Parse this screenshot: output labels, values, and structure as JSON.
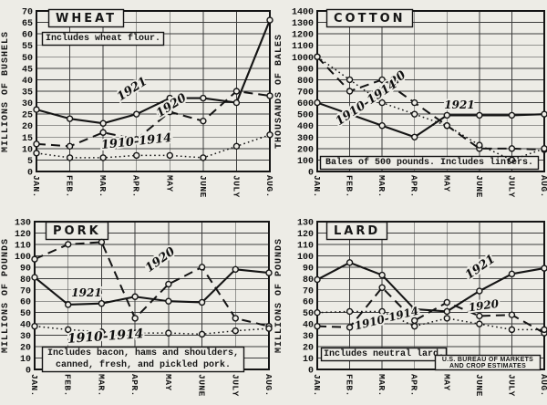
{
  "credit": {
    "line1": "U.S. BUREAU OF MARKETS",
    "line2": "AND CROP ESTIMATES"
  },
  "chart_data": [
    {
      "id": "wheat",
      "type": "line",
      "title": "WHEAT",
      "note": "Includes wheat flour.",
      "ylabel": "MILLIONS OF BUSHELS",
      "ylim": [
        0,
        70
      ],
      "ytick": 5,
      "grid": true,
      "categories": [
        "JAN.",
        "FEB.",
        "MAR.",
        "APR.",
        "MAY",
        "JUNE",
        "JULY",
        "AUG."
      ],
      "series": [
        {
          "name": "1921",
          "line_style": "solid",
          "values": [
            27,
            23,
            21,
            25,
            32,
            32,
            30,
            66
          ]
        },
        {
          "name": "1920",
          "line_style": "long-dash",
          "values": [
            12,
            11,
            17,
            14,
            26,
            22,
            35,
            33
          ]
        },
        {
          "name": "1910-1914",
          "line_style": "dotted",
          "values": [
            8,
            6,
            6,
            7,
            7,
            6,
            11,
            16
          ]
        }
      ],
      "series_labels": [
        {
          "text": "1921",
          "x": 147,
          "y": 101,
          "angle": -33,
          "size": 13
        },
        {
          "text": "1920",
          "x": 190,
          "y": 119,
          "angle": -33,
          "size": 13
        },
        {
          "text": "1910-1914",
          "x": 150,
          "y": 159,
          "angle": -6,
          "size": 13
        }
      ]
    },
    {
      "id": "cotton",
      "type": "line",
      "title": "COTTON",
      "note": "Bales of 500 pounds. Includes linters.",
      "ylabel": "THOUSANDS OF BALES",
      "ylim": [
        0,
        1400
      ],
      "ytick": 100,
      "grid": true,
      "categories": [
        "JAN.",
        "FEB.",
        "MAR.",
        "APR.",
        "MAY",
        "JUNE",
        "JULY",
        "AUG."
      ],
      "series": [
        {
          "name": "1921",
          "line_style": "solid",
          "values": [
            600,
            500,
            400,
            300,
            490,
            490,
            490,
            500
          ]
        },
        {
          "name": "1920",
          "line_style": "long-dash",
          "values": [
            1000,
            700,
            800,
            600,
            400,
            200,
            200,
            190
          ]
        },
        {
          "name": "1910-1914",
          "line_style": "dotted",
          "values": [
            1000,
            800,
            600,
            500,
            400,
            230,
            100,
            200
          ]
        }
      ],
      "series_labels": [
        {
          "text": "1920",
          "x": 132,
          "y": 95,
          "angle": -40,
          "size": 13
        },
        {
          "text": "1910-1914",
          "x": 104,
          "y": 116,
          "angle": -34,
          "size": 13
        },
        {
          "text": "1921",
          "x": 204,
          "y": 119,
          "angle": 0,
          "size": 12
        }
      ]
    },
    {
      "id": "pork",
      "type": "line",
      "title": "PORK",
      "note": "Includes bacon, hams and shoulders, canned, fresh, and pickled pork.",
      "ylabel": "MILLIONS OF POUNDS",
      "ylim": [
        0,
        130
      ],
      "ytick": 10,
      "grid": true,
      "categories": [
        "JAN.",
        "FEB.",
        "MAR.",
        "APR.",
        "MAY",
        "JUNE",
        "JULY",
        "AUG."
      ],
      "series": [
        {
          "name": "1921",
          "line_style": "solid",
          "values": [
            81,
            57,
            58,
            64,
            60,
            59,
            88,
            85
          ]
        },
        {
          "name": "1920",
          "line_style": "long-dash",
          "values": [
            97,
            110,
            112,
            45,
            75,
            90,
            45,
            38
          ]
        },
        {
          "name": "1910-1914",
          "line_style": "dotted",
          "values": [
            38,
            35,
            33,
            32,
            32,
            31,
            34,
            36
          ]
        }
      ],
      "series_labels": [
        {
          "text": "1921",
          "x": 95,
          "y": 103,
          "angle": 0,
          "size": 12
        },
        {
          "text": "1920",
          "x": 178,
          "y": 66,
          "angle": -36,
          "size": 13
        },
        {
          "text": "1910-1914",
          "x": 116,
          "y": 151,
          "angle": -4,
          "size": 14
        }
      ]
    },
    {
      "id": "lard",
      "type": "line",
      "title": "LARD",
      "note": "Includes neutral lard.",
      "ylabel": "MILLIONS OF POUNDS",
      "ylim": [
        0,
        130
      ],
      "ytick": 10,
      "grid": true,
      "categories": [
        "JAN.",
        "FEB.",
        "MAR.",
        "APR.",
        "MAY",
        "JUNE",
        "JULY",
        "AUG."
      ],
      "series": [
        {
          "name": "1921",
          "line_style": "solid",
          "values": [
            79,
            94,
            83,
            53,
            51,
            69,
            84,
            89
          ]
        },
        {
          "name": "1920",
          "line_style": "long-dash",
          "values": [
            38,
            37,
            72,
            43,
            59,
            47,
            48,
            32
          ]
        },
        {
          "name": "1910-1914",
          "line_style": "dotted",
          "values": [
            50,
            51,
            51,
            38,
            45,
            40,
            35,
            35
          ]
        }
      ],
      "series_labels": [
        {
          "text": "1921",
          "x": 229,
          "y": 74,
          "angle": -35,
          "size": 13
        },
        {
          "text": "1920",
          "x": 231,
          "y": 117,
          "angle": -8,
          "size": 12
        },
        {
          "text": "1910-1914",
          "x": 125,
          "y": 131,
          "angle": -14,
          "size": 12
        }
      ]
    }
  ]
}
